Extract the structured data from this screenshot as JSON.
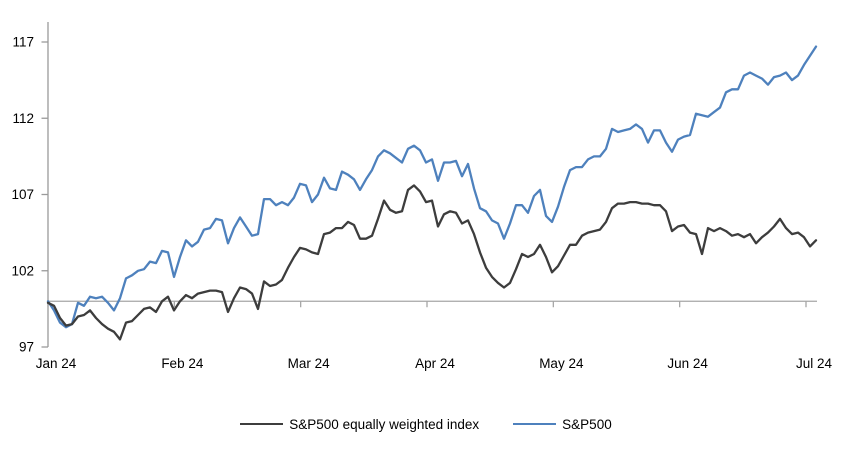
{
  "chart_data": {
    "type": "line",
    "title": "",
    "xlabel": "",
    "ylabel": "",
    "x_tick_labels": [
      "Jan 24",
      "Feb 24",
      "Mar 24",
      "Apr 24",
      "May 24",
      "Jun 24",
      "Jul 24"
    ],
    "y_ticks": [
      97,
      102,
      107,
      112,
      117
    ],
    "ylim": [
      97,
      118.3
    ],
    "baseline_value": 100,
    "grid": false,
    "legend_position": "bottom",
    "series": [
      {
        "name": "S&P500 equally weighted index",
        "color": "#3d3d3d",
        "values": [
          99.9,
          99.7,
          98.9,
          98.4,
          98.5,
          99.0,
          99.1,
          99.4,
          98.9,
          98.5,
          98.2,
          98.0,
          97.5,
          98.6,
          98.7,
          99.1,
          99.5,
          99.6,
          99.3,
          100.0,
          100.3,
          99.4,
          100.0,
          100.4,
          100.2,
          100.5,
          100.6,
          100.7,
          100.7,
          100.6,
          99.3,
          100.2,
          100.9,
          100.8,
          100.5,
          99.5,
          101.3,
          101.0,
          101.1,
          101.4,
          102.2,
          102.9,
          103.5,
          103.4,
          103.2,
          103.1,
          104.4,
          104.5,
          104.8,
          104.8,
          105.2,
          105.0,
          104.1,
          104.1,
          104.3,
          105.4,
          106.6,
          106.0,
          105.8,
          105.9,
          107.3,
          107.6,
          107.2,
          106.5,
          106.6,
          104.9,
          105.7,
          105.9,
          105.8,
          105.1,
          105.3,
          104.4,
          103.2,
          102.2,
          101.6,
          101.2,
          100.9,
          101.2,
          102.1,
          103.1,
          102.9,
          103.1,
          103.7,
          102.9,
          101.9,
          102.3,
          103.0,
          103.7,
          103.7,
          104.3,
          104.5,
          104.6,
          104.7,
          105.2,
          106.1,
          106.4,
          106.4,
          106.5,
          106.5,
          106.4,
          106.4,
          106.3,
          106.3,
          105.9,
          104.6,
          104.9,
          105.0,
          104.5,
          104.4,
          103.1,
          104.8,
          104.6,
          104.8,
          104.6,
          104.3,
          104.4,
          104.2,
          104.4,
          103.8,
          104.2,
          104.5,
          104.9,
          105.4,
          104.8,
          104.4,
          104.5,
          104.2,
          103.6,
          104.0
        ]
      },
      {
        "name": "S&P500",
        "color": "#4e81bd",
        "values": [
          100.0,
          99.4,
          98.6,
          98.3,
          98.5,
          99.9,
          99.7,
          100.3,
          100.2,
          100.3,
          99.9,
          99.4,
          100.2,
          101.5,
          101.7,
          102.0,
          102.1,
          102.6,
          102.5,
          103.3,
          103.2,
          101.6,
          102.9,
          104.0,
          103.6,
          103.9,
          104.7,
          104.8,
          105.4,
          105.3,
          103.8,
          104.8,
          105.5,
          104.9,
          104.3,
          104.4,
          106.7,
          106.7,
          106.3,
          106.5,
          106.3,
          106.8,
          107.7,
          107.6,
          106.5,
          107.0,
          108.1,
          107.4,
          107.3,
          108.5,
          108.3,
          108.0,
          107.3,
          108.0,
          108.6,
          109.5,
          109.9,
          109.7,
          109.4,
          109.1,
          110.0,
          110.2,
          109.9,
          109.1,
          109.3,
          107.9,
          109.1,
          109.1,
          109.2,
          108.2,
          109.0,
          107.4,
          106.1,
          105.9,
          105.3,
          105.1,
          104.1,
          105.1,
          106.3,
          106.3,
          105.8,
          106.9,
          107.3,
          105.6,
          105.2,
          106.2,
          107.5,
          108.6,
          108.8,
          108.8,
          109.3,
          109.5,
          109.5,
          110.0,
          111.3,
          111.1,
          111.2,
          111.3,
          111.6,
          111.3,
          110.4,
          111.2,
          111.2,
          110.4,
          109.8,
          110.6,
          110.8,
          110.9,
          112.3,
          112.2,
          112.1,
          112.4,
          112.7,
          113.7,
          113.9,
          113.9,
          114.8,
          115.0,
          114.8,
          114.6,
          114.2,
          114.7,
          114.8,
          115.0,
          114.5,
          114.8,
          115.5,
          116.1,
          116.7
        ]
      }
    ]
  },
  "colors": {
    "axis_line": "#9a9a9a",
    "baseline": "#a6a6a6",
    "text": "#000000",
    "background": "#ffffff"
  }
}
